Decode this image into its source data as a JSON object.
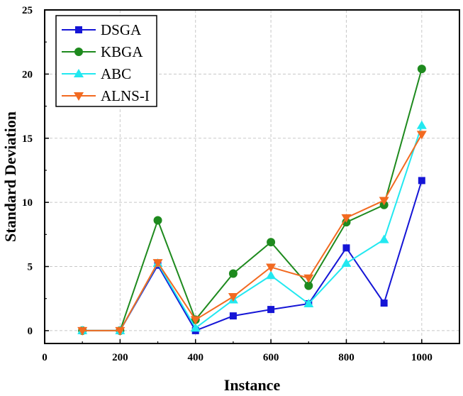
{
  "chart_data": {
    "type": "line",
    "title": "",
    "xlabel": "Instance",
    "ylabel": "Standard Deviation",
    "xlim": [
      0,
      1100
    ],
    "ylim": [
      -1,
      25
    ],
    "xticks": [
      0,
      200,
      400,
      600,
      800,
      1000
    ],
    "yticks": [
      0,
      5,
      10,
      15,
      20,
      25
    ],
    "grid": true,
    "legend_position": "top-left",
    "x": [
      100,
      200,
      300,
      400,
      500,
      600,
      700,
      800,
      900,
      1000
    ],
    "series": [
      {
        "name": "DSGA",
        "color": "#1515d6",
        "marker": "square",
        "values": [
          0,
          0,
          5.1,
          0,
          1.15,
          1.65,
          2.1,
          6.45,
          2.15,
          11.7
        ]
      },
      {
        "name": "KBGA",
        "color": "#1e8a1e",
        "marker": "circle",
        "values": [
          0,
          0,
          8.6,
          0.85,
          4.45,
          6.9,
          3.5,
          8.45,
          9.8,
          20.4
        ]
      },
      {
        "name": "ABC",
        "color": "#22e8f0",
        "marker": "triangle-up",
        "values": [
          0,
          0,
          5.25,
          0.2,
          2.4,
          4.3,
          2.1,
          5.25,
          7.1,
          16.0
        ]
      },
      {
        "name": "ALNS-I",
        "color": "#f26a21",
        "marker": "triangle-down",
        "values": [
          0,
          0,
          5.3,
          0.85,
          2.65,
          4.95,
          4.1,
          8.8,
          10.15,
          15.3
        ]
      }
    ]
  }
}
